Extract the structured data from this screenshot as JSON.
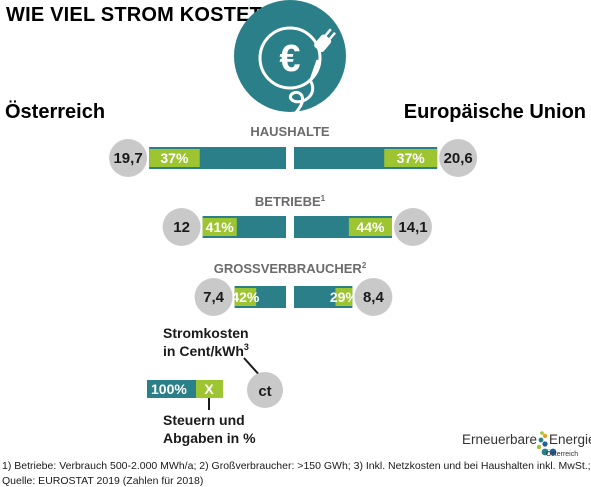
{
  "title": "WIE VIEL STROM KOSTET",
  "regions": {
    "left": "Österreich",
    "right": "Europäische Union"
  },
  "colors": {
    "teal": "#2a7f88",
    "green": "#9dc431",
    "circle": "#c9c9c9",
    "icon_bg": "#2a7f88"
  },
  "icons": {
    "center": "euro-plug-icon"
  },
  "chart_data": {
    "type": "bar",
    "categories": [
      {
        "label": "HAUSHALTE",
        "sup": ""
      },
      {
        "label": "BETRIEBE",
        "sup": "1"
      },
      {
        "label": "GROSSVERBRAUCHER",
        "sup": "2"
      }
    ],
    "series": [
      {
        "name": "Österreich",
        "cost_ct_per_kwh": [
          19.7,
          12,
          7.4
        ],
        "cost_labels": [
          "19,7",
          "12",
          "7,4"
        ],
        "tax_share_pct": [
          37,
          41,
          42
        ],
        "tax_labels": [
          "37%",
          "41%",
          "42%"
        ]
      },
      {
        "name": "Europäische Union",
        "cost_ct_per_kwh": [
          20.6,
          14.1,
          8.4
        ],
        "cost_labels": [
          "20,6",
          "14,1",
          "8,4"
        ],
        "tax_share_pct": [
          37,
          44,
          29
        ],
        "tax_labels": [
          "37%",
          "44%",
          "29%"
        ]
      }
    ]
  },
  "legend": {
    "cost_line1": "Stromkosten",
    "cost_line2": "in Cent/kWh",
    "cost_sup": "3",
    "ct": "ct",
    "bar_full": "100%",
    "bar_x": "X",
    "tax_line1": "Steuern und",
    "tax_line2": "Abgaben in %"
  },
  "logo": {
    "word1": "Erneuerbare",
    "word2": "Energie",
    "sub": "Österreich"
  },
  "footnote": {
    "line1": "1) Betriebe: Verbrauch 500-2.000 MWh/a; 2) Großverbraucher: >150 GWh; 3) Inkl. Netzkosten und bei Haushalten inkl. MwSt.;",
    "line2": "Quelle: EUROSTAT 2019 (Zahlen für 2018)"
  }
}
